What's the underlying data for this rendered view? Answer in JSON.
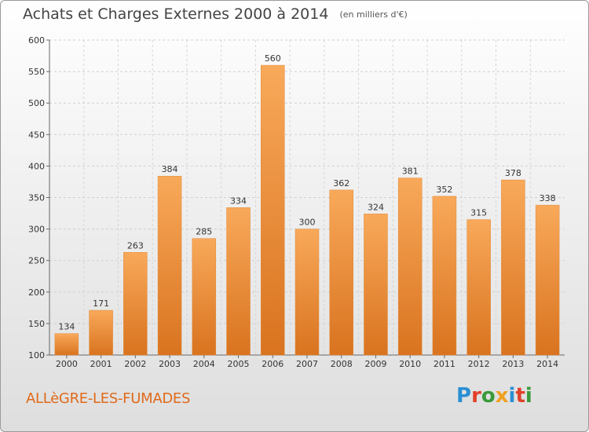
{
  "header": {
    "title": "Achats et Charges Externes 2000 à 2014",
    "subtitle": "(en milliers d'€)"
  },
  "footer": {
    "commune": "ALLèGRE-LES-FUMADES",
    "logo": "Proxiti",
    "logo_letters": [
      "P",
      "r",
      "o",
      "x",
      "i",
      "t",
      "i"
    ],
    "logo_colors": [
      "#2a8fd3",
      "#e0402a",
      "#3a9a3a",
      "#f0a020",
      "#2a8fd3",
      "#e0402a",
      "#3a9a3a"
    ]
  },
  "chart_data": {
    "type": "bar",
    "categories": [
      "2000",
      "2001",
      "2002",
      "2003",
      "2004",
      "2005",
      "2006",
      "2007",
      "2008",
      "2009",
      "2010",
      "2011",
      "2012",
      "2013",
      "2014"
    ],
    "values": [
      134,
      171,
      263,
      384,
      285,
      334,
      560,
      300,
      362,
      324,
      381,
      352,
      315,
      378,
      338
    ],
    "title": "Achats et Charges Externes 2000 à 2014",
    "subtitle": "(en milliers d'€)",
    "xlabel": "",
    "ylabel": "",
    "ylim": [
      100,
      600
    ],
    "yticks": [
      100,
      150,
      200,
      250,
      300,
      350,
      400,
      450,
      500,
      550,
      600
    ],
    "grid": true,
    "bar_color_light": "#f8a95a",
    "bar_color_dark": "#d9731f"
  }
}
